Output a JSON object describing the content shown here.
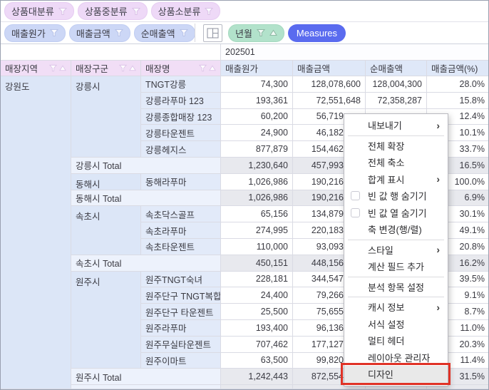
{
  "colors": {
    "measures_blue": "#5a6bef",
    "pill_pink": "#eed9f7",
    "pill_blue": "#ccd7f6",
    "pill_green": "#b2e2cb",
    "header_pink": "#f1def6",
    "header_blue": "#dfe8f8",
    "row_header_blue": "#dce6f7",
    "highlight_red": "#e03226"
  },
  "shelf": {
    "category_pills": [
      {
        "name": "product-major",
        "label": "상품대분류"
      },
      {
        "name": "product-middle",
        "label": "상품중분류"
      },
      {
        "name": "product-minor",
        "label": "상품소분류"
      }
    ],
    "measure_pills": [
      {
        "name": "cost",
        "label": "매출원가"
      },
      {
        "name": "sales",
        "label": "매출금액"
      },
      {
        "name": "net-sales",
        "label": "순매출액"
      }
    ],
    "column_pill": {
      "label": "년월"
    },
    "measures_button": {
      "label": "Measures"
    }
  },
  "table": {
    "period": "202501",
    "row_headers": [
      {
        "label": "매장지역"
      },
      {
        "label": "매장구군"
      },
      {
        "label": "매장명"
      }
    ],
    "value_headers": [
      {
        "label": "매출원가"
      },
      {
        "label": "매출금액"
      },
      {
        "label": "순매출액"
      },
      {
        "label": "매출금액(%)"
      }
    ],
    "region": "강원도",
    "rows": [
      {
        "district": "강릉시",
        "district_span": 5,
        "name": "TNGT강릉",
        "cost": "74,300",
        "sales": "128,078,600",
        "sales_cut": false,
        "net": "128,004,300",
        "pct": "28.0%",
        "total": false
      },
      {
        "name": "강릉라푸마 123",
        "cost": "193,361",
        "sales": "72,551,648",
        "sales_cut": false,
        "net": "72,358,287",
        "pct": "15.8%",
        "total": false
      },
      {
        "name": "강릉종합매장 123",
        "cost": "60,200",
        "sales": "56,719",
        "sales_cut": true,
        "net": "",
        "pct": "12.4%",
        "total": false
      },
      {
        "name": "강릉타운젠트",
        "cost": "24,900",
        "sales": "46,182",
        "sales_cut": true,
        "net": "",
        "pct": "10.1%",
        "total": false
      },
      {
        "name": "강릉헤지스",
        "cost": "877,879",
        "sales": "154,462",
        "sales_cut": true,
        "net": "",
        "pct": "33.7%",
        "total": false
      },
      {
        "label": "강릉시 Total",
        "cost": "1,230,640",
        "sales": "457,993",
        "sales_cut": true,
        "net": "",
        "pct": "16.5%",
        "total": true
      },
      {
        "district": "동해시",
        "district_span": 1,
        "name": "동해라푸마",
        "cost": "1,026,986",
        "sales": "190,216",
        "sales_cut": true,
        "net": "",
        "pct": "100.0%",
        "total": false
      },
      {
        "label": "동해시 Total",
        "cost": "1,026,986",
        "sales": "190,216",
        "sales_cut": true,
        "net": "",
        "pct": "6.9%",
        "total": true
      },
      {
        "district": "속초시",
        "district_span": 3,
        "name": "속초닥스골프",
        "cost": "65,156",
        "sales": "134,879",
        "sales_cut": true,
        "net": "",
        "pct": "30.1%",
        "total": false
      },
      {
        "name": "속초라푸마",
        "cost": "274,995",
        "sales": "220,183",
        "sales_cut": true,
        "net": "",
        "pct": "49.1%",
        "total": false
      },
      {
        "name": "속초타운젠트",
        "cost": "110,000",
        "sales": "93,093",
        "sales_cut": true,
        "net": "",
        "pct": "20.8%",
        "total": false
      },
      {
        "label": "속초시 Total",
        "cost": "450,151",
        "sales": "448,156",
        "sales_cut": true,
        "net": "",
        "pct": "16.2%",
        "total": true
      },
      {
        "district": "원주시",
        "district_span": 6,
        "name": "원주TNGT숙녀",
        "cost": "228,181",
        "sales": "344,547",
        "sales_cut": true,
        "net": "",
        "pct": "39.5%",
        "total": false
      },
      {
        "name": "원주단구 TNGT복합",
        "cost": "24,400",
        "sales": "79,266",
        "sales_cut": true,
        "net": "",
        "pct": "9.1%",
        "total": false
      },
      {
        "name": "원주단구 타운젠트",
        "cost": "25,500",
        "sales": "75,655",
        "sales_cut": true,
        "net": "",
        "pct": "8.7%",
        "total": false
      },
      {
        "name": "원주라푸마",
        "cost": "193,400",
        "sales": "96,136",
        "sales_cut": true,
        "net": "",
        "pct": "11.0%",
        "total": false
      },
      {
        "name": "원주무실타운젠트",
        "cost": "707,462",
        "sales": "177,127",
        "sales_cut": true,
        "net": "",
        "pct": "20.3%",
        "total": false
      },
      {
        "name": "원주이마트",
        "cost": "63,500",
        "sales": "99,820",
        "sales_cut": true,
        "net": "",
        "pct": "11.4%",
        "total": false
      },
      {
        "label": "원주시 Total",
        "cost": "1,242,443",
        "sales": "872,554",
        "sales_cut": true,
        "net": "",
        "pct": "31.5%",
        "total": true
      }
    ]
  },
  "menu": {
    "submenu_arrow": "›",
    "items": [
      {
        "name": "export",
        "label": "내보내기",
        "submenu": true
      },
      {
        "separator": true
      },
      {
        "name": "expand-all",
        "label": "전체 확장"
      },
      {
        "name": "collapse-all",
        "label": "전체 축소"
      },
      {
        "name": "show-totals",
        "label": "합계 표시",
        "submenu": true
      },
      {
        "name": "hide-empty-rows",
        "label": "빈 값 행 숨기기",
        "checkbox": true
      },
      {
        "name": "hide-empty-cols",
        "label": "빈 값 열 숨기기",
        "checkbox": true
      },
      {
        "name": "swap-axes",
        "label": "축 변경(행/렬)"
      },
      {
        "separator": true
      },
      {
        "name": "style",
        "label": "스타일",
        "submenu": true
      },
      {
        "name": "add-calculated-field",
        "label": "계산 필드 추가"
      },
      {
        "separator": true
      },
      {
        "name": "analysis-item-settings",
        "label": "분석 항목 설정"
      },
      {
        "separator": true
      },
      {
        "name": "cache-info",
        "label": "캐시 정보",
        "submenu": true
      },
      {
        "name": "format-settings",
        "label": "서식 설정"
      },
      {
        "name": "multi-header",
        "label": "멀티 헤더"
      },
      {
        "name": "layout-manager",
        "label": "레이아웃 관리자"
      },
      {
        "name": "design",
        "label": "디자인",
        "highlighted": true
      }
    ]
  }
}
